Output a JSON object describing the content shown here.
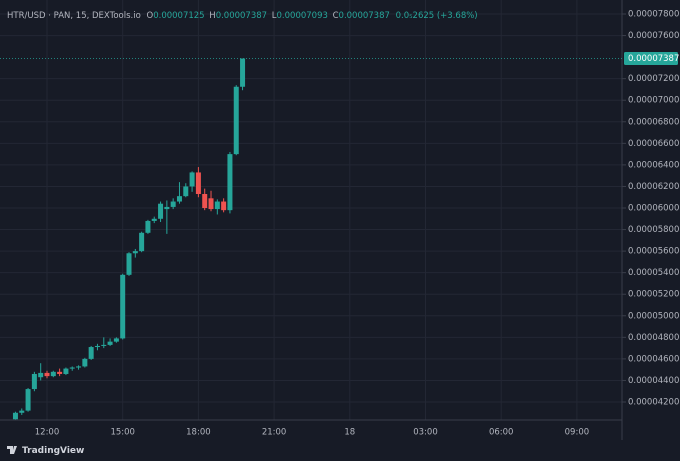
{
  "chart_data": {
    "type": "candlestick",
    "title": "HTR/USD · PAN, 15, DEXTools.io",
    "ohlc_labels": [
      "O",
      "H",
      "L",
      "C"
    ],
    "change_label": "0.0₅2625 (+3.68%)",
    "brand": "TradingView",
    "x": [
      "10:45",
      "11:00",
      "11:15",
      "11:30",
      "11:45",
      "12:00",
      "12:15",
      "12:30",
      "12:45",
      "13:00",
      "13:15",
      "13:30",
      "13:45",
      "14:00",
      "14:15",
      "14:30",
      "14:45",
      "15:00",
      "15:15",
      "15:30",
      "15:45",
      "16:00",
      "16:15",
      "16:30",
      "16:45",
      "17:00",
      "17:15",
      "17:30",
      "17:45",
      "18:00",
      "18:15",
      "18:30",
      "18:45",
      "19:00",
      "19:15",
      "19:30",
      "19:45"
    ],
    "open": [
      4.04e-05,
      4.1e-05,
      4.12e-05,
      4.32e-05,
      4.43e-05,
      4.47e-05,
      4.44e-05,
      4.48e-05,
      4.46e-05,
      4.51e-05,
      4.52e-05,
      4.53e-05,
      4.6e-05,
      4.71e-05,
      4.72e-05,
      4.73e-05,
      4.76e-05,
      4.79e-05,
      5.38e-05,
      5.58e-05,
      5.6e-05,
      5.77e-05,
      5.88e-05,
      5.9e-05,
      5.99e-05,
      6.01e-05,
      6.06e-05,
      6.11e-05,
      6.2e-05,
      6.33e-05,
      6.13e-05,
      6.09e-05,
      5.99e-05,
      6.06e-05,
      5.98e-05,
      6.5e-05,
      7.125e-05
    ],
    "high": [
      4.11e-05,
      4.14e-05,
      4.33e-05,
      4.48e-05,
      4.56e-05,
      4.49e-05,
      4.49e-05,
      4.51e-05,
      4.52e-05,
      4.53e-05,
      4.54e-05,
      4.61e-05,
      4.72e-05,
      4.74e-05,
      4.8e-05,
      4.79e-05,
      4.8e-05,
      5.39e-05,
      5.59e-05,
      5.62e-05,
      5.78e-05,
      5.89e-05,
      5.92e-05,
      6.06e-05,
      6.07e-05,
      6.09e-05,
      6.24e-05,
      6.23e-05,
      6.34e-05,
      6.38e-05,
      6.18e-05,
      6.16e-05,
      6.08e-05,
      6.09e-05,
      6.52e-05,
      7.14e-05,
      7.387e-05
    ],
    "low": [
      4.035e-05,
      4.08e-05,
      4.11e-05,
      4.3e-05,
      4.4e-05,
      4.42e-05,
      4.43e-05,
      4.44e-05,
      4.45e-05,
      4.49e-05,
      4.5e-05,
      4.52e-05,
      4.59e-05,
      4.68e-05,
      4.7e-05,
      4.72e-05,
      4.75e-05,
      4.78e-05,
      5.37e-05,
      5.54e-05,
      5.59e-05,
      5.76e-05,
      5.86e-05,
      5.87e-05,
      5.76e-05,
      5.99e-05,
      6.04e-05,
      6.1e-05,
      6.15e-05,
      6.1e-05,
      5.98e-05,
      5.97e-05,
      5.94e-05,
      5.96e-05,
      5.95e-05,
      6.49e-05,
      7.093e-05
    ],
    "close": [
      4.1e-05,
      4.12e-05,
      4.32e-05,
      4.46e-05,
      4.47e-05,
      4.44e-05,
      4.48e-05,
      4.46e-05,
      4.51e-05,
      4.52e-05,
      4.53e-05,
      4.6e-05,
      4.71e-05,
      4.72e-05,
      4.73e-05,
      4.76e-05,
      4.79e-05,
      5.38e-05,
      5.58e-05,
      5.6e-05,
      5.77e-05,
      5.88e-05,
      5.9e-05,
      6.04e-05,
      6.01e-05,
      6.06e-05,
      6.11e-05,
      6.2e-05,
      6.33e-05,
      6.13e-05,
      6e-05,
      5.99e-05,
      6.06e-05,
      5.98e-05,
      6.5e-05,
      7.125e-05,
      7.387e-05
    ],
    "up_color": "#26a69a",
    "down_color": "#ef5350",
    "ylim": [
      4.033e-05,
      7.93e-05
    ],
    "yticks": [
      {
        "value": 7.8e-05,
        "label": "0.00007800"
      },
      {
        "value": 7.6e-05,
        "label": "0.00007600"
      },
      {
        "value": 7.2e-05,
        "label": "0.00007200"
      },
      {
        "value": 7e-05,
        "label": "0.00007000"
      },
      {
        "value": 6.8e-05,
        "label": "0.00006800"
      },
      {
        "value": 6.6e-05,
        "label": "0.00006600"
      },
      {
        "value": 6.4e-05,
        "label": "0.00006400"
      },
      {
        "value": 6.2e-05,
        "label": "0.00006200"
      },
      {
        "value": 6e-05,
        "label": "0.00006000"
      },
      {
        "value": 5.8e-05,
        "label": "0.00005800"
      },
      {
        "value": 5.6e-05,
        "label": "0.00005600"
      },
      {
        "value": 5.4e-05,
        "label": "0.00005400"
      },
      {
        "value": 5.2e-05,
        "label": "0.00005200"
      },
      {
        "value": 5e-05,
        "label": "0.00005000"
      },
      {
        "value": 4.8e-05,
        "label": "0.00004800"
      },
      {
        "value": 4.6e-05,
        "label": "0.00004600"
      },
      {
        "value": 4.4e-05,
        "label": "0.00004400"
      },
      {
        "value": 4.2e-05,
        "label": "0.00004200"
      }
    ],
    "xticks": [
      "12:00",
      "15:00",
      "18:00",
      "21:00",
      "18",
      "03:00",
      "06:00",
      "09:00"
    ],
    "grid": true
  }
}
